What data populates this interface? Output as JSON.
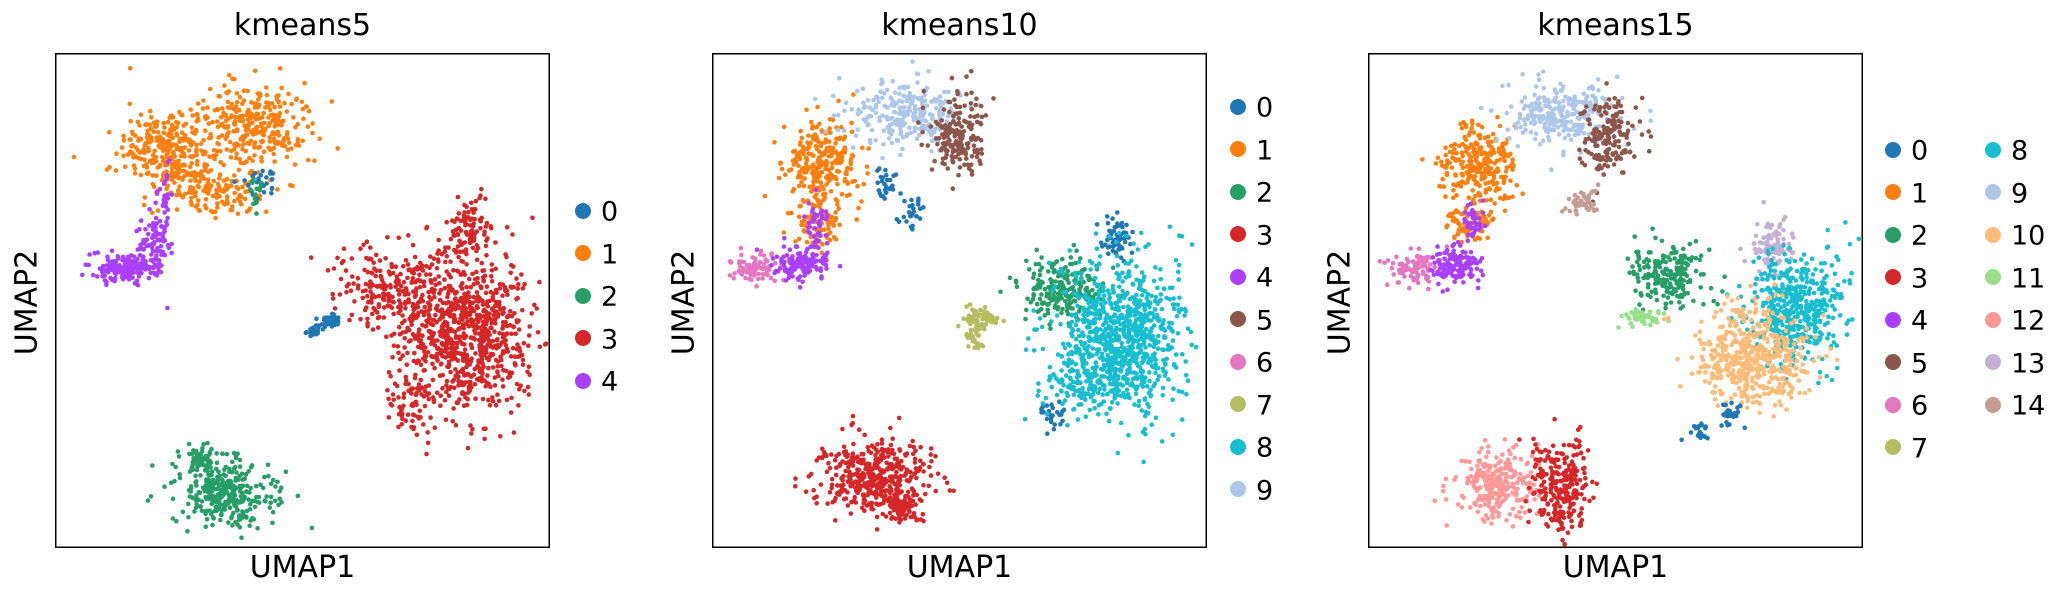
{
  "palette": [
    "#1f77b4",
    "#ff7f0e",
    "#279e68",
    "#d62728",
    "#aa40fc",
    "#8c564b",
    "#e377c2",
    "#b5bd61",
    "#17becf",
    "#aec7e8",
    "#ffbb78",
    "#98df8a",
    "#ff9896",
    "#c5b0d5",
    "#c49c94"
  ],
  "chart_data": [
    {
      "type": "scatter",
      "title": "kmeans5",
      "xlabel": "UMAP1",
      "ylabel": "UMAP2",
      "legend": [
        "0",
        "1",
        "2",
        "3",
        "4"
      ],
      "legend_placement": "right",
      "grid": false
    },
    {
      "type": "scatter",
      "title": "kmeans10",
      "xlabel": "UMAP1",
      "ylabel": "UMAP2",
      "legend": [
        "0",
        "1",
        "2",
        "3",
        "4",
        "5",
        "6",
        "7",
        "8",
        "9"
      ],
      "legend_placement": "right",
      "grid": false
    },
    {
      "type": "scatter",
      "title": "kmeans15",
      "xlabel": "UMAP1",
      "ylabel": "UMAP2",
      "legend": [
        "0",
        "1",
        "2",
        "3",
        "4",
        "5",
        "6",
        "7",
        "8",
        "9",
        "10",
        "11",
        "12",
        "13",
        "14"
      ],
      "legend_placement": "right",
      "grid": false
    }
  ]
}
